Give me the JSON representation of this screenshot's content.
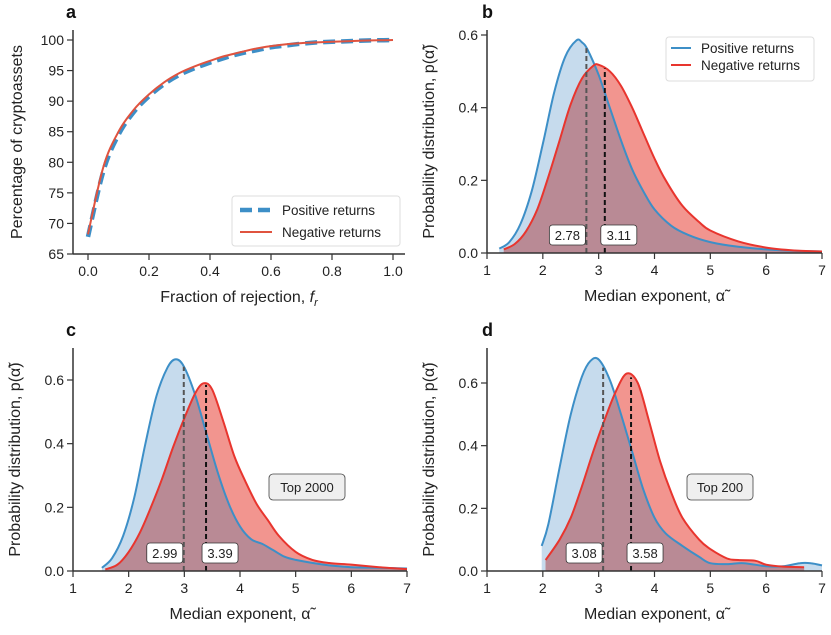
{
  "colors": {
    "positive": "#3d8fc7",
    "negative": "#e8352e",
    "positive_fill": "#a8c8e4",
    "negative_fill": "#ef7a73",
    "overlap_fill": "#b98a95",
    "median_pos": "#555555",
    "median_neg": "#111111"
  },
  "chart_data": [
    {
      "panel": "a",
      "type": "line",
      "xlabel": "Fraction of rejection, f_r",
      "xlabel_main": "Fraction of rejection, ",
      "xlabel_italic": "f",
      "xlabel_sub": "r",
      "ylabel": "Percentage of cryptoassets",
      "xlim": [
        0,
        1
      ],
      "ylim": [
        65,
        101.5
      ],
      "xticks": [
        "0.0",
        "0.2",
        "0.4",
        "0.6",
        "0.8",
        "1.0"
      ],
      "xtick_values": [
        0,
        0.2,
        0.4,
        0.6,
        0.8,
        1.0
      ],
      "yticks": [
        "65",
        "70",
        "75",
        "80",
        "85",
        "90",
        "95",
        "100"
      ],
      "ytick_values": [
        65,
        70,
        75,
        80,
        85,
        90,
        95,
        100
      ],
      "legend": {
        "placement": "lower-right",
        "entries": [
          "Positive returns",
          "Negative returns"
        ]
      },
      "series": [
        {
          "name": "Positive returns",
          "style": "dashed",
          "x": [
            0,
            0.05,
            0.1,
            0.15,
            0.2,
            0.25,
            0.3,
            0.35,
            0.4,
            0.45,
            0.5,
            0.55,
            0.6,
            0.65,
            0.7,
            0.75,
            0.8,
            0.85,
            0.9,
            0.95,
            1.0
          ],
          "y": [
            67.8,
            78.5,
            84.5,
            88.2,
            90.8,
            92.8,
            94.3,
            95.4,
            96.3,
            97.1,
            97.8,
            98.3,
            98.8,
            99.1,
            99.4,
            99.6,
            99.7,
            99.8,
            99.9,
            99.95,
            100
          ]
        },
        {
          "name": "Negative returns",
          "style": "solid",
          "x": [
            0,
            0.05,
            0.1,
            0.15,
            0.2,
            0.25,
            0.3,
            0.35,
            0.4,
            0.45,
            0.5,
            0.55,
            0.6,
            0.65,
            0.7,
            0.75,
            0.8,
            0.85,
            0.9,
            0.95,
            1.0
          ],
          "y": [
            68.2,
            79.2,
            85.0,
            88.6,
            91.1,
            93.1,
            94.6,
            95.7,
            96.6,
            97.4,
            98.0,
            98.6,
            99.0,
            99.3,
            99.5,
            99.6,
            99.7,
            99.8,
            99.9,
            99.95,
            100
          ]
        }
      ]
    },
    {
      "panel": "b",
      "type": "area",
      "xlabel": "Median exponent, α̃",
      "ylabel": "Probability distribution, p(α̃)",
      "xlim": [
        1,
        7
      ],
      "ylim": [
        0,
        0.62
      ],
      "xticks": [
        "1",
        "2",
        "3",
        "4",
        "5",
        "6",
        "7"
      ],
      "xtick_values": [
        1,
        2,
        3,
        4,
        5,
        6,
        7
      ],
      "yticks": [
        "0.0",
        "0.2",
        "0.4",
        "0.6"
      ],
      "ytick_values": [
        0,
        0.2,
        0.4,
        0.6
      ],
      "legend": {
        "placement": "top-right",
        "entries": [
          "Positive returns",
          "Negative returns"
        ]
      },
      "annotation": "",
      "medians": {
        "positive": 2.78,
        "negative": 3.11,
        "positive_label": "2.78",
        "negative_label": "3.11"
      },
      "series": [
        {
          "name": "Positive returns",
          "x": [
            1.22,
            1.4,
            1.6,
            1.8,
            2.0,
            2.2,
            2.4,
            2.6,
            2.7,
            2.8,
            3.0,
            3.2,
            3.4,
            3.6,
            3.8,
            4.0,
            4.3,
            4.6,
            5.0,
            5.5,
            6.0,
            6.5,
            7.0
          ],
          "y": [
            0.012,
            0.03,
            0.08,
            0.17,
            0.3,
            0.44,
            0.54,
            0.585,
            0.58,
            0.56,
            0.49,
            0.4,
            0.31,
            0.23,
            0.17,
            0.12,
            0.075,
            0.05,
            0.03,
            0.017,
            0.01,
            0.006,
            0.004
          ]
        },
        {
          "name": "Negative returns",
          "x": [
            1.3,
            1.5,
            1.7,
            1.9,
            2.1,
            2.3,
            2.5,
            2.7,
            2.9,
            3.0,
            3.2,
            3.4,
            3.6,
            3.8,
            4.0,
            4.2,
            4.5,
            4.8,
            5.0,
            5.5,
            6.0,
            6.5,
            7.0
          ],
          "y": [
            0.01,
            0.025,
            0.06,
            0.12,
            0.21,
            0.31,
            0.41,
            0.48,
            0.515,
            0.518,
            0.5,
            0.46,
            0.4,
            0.33,
            0.26,
            0.2,
            0.13,
            0.085,
            0.062,
            0.032,
            0.015,
            0.007,
            0.004
          ]
        }
      ]
    },
    {
      "panel": "c",
      "type": "area",
      "xlabel": "Median exponent, α̃",
      "ylabel": "Probability distribution, p(α̃)",
      "xlim": [
        1,
        7
      ],
      "ylim": [
        0,
        0.7
      ],
      "xticks": [
        "1",
        "2",
        "3",
        "4",
        "5",
        "6",
        "7"
      ],
      "xtick_values": [
        1,
        2,
        3,
        4,
        5,
        6,
        7
      ],
      "yticks": [
        "0.0",
        "0.2",
        "0.4",
        "0.6"
      ],
      "ytick_values": [
        0,
        0.2,
        0.4,
        0.6
      ],
      "annotation": "Top 2000",
      "medians": {
        "positive": 2.99,
        "negative": 3.39,
        "positive_label": "2.99",
        "negative_label": "3.39"
      },
      "series": [
        {
          "name": "Positive returns",
          "x": [
            1.52,
            1.7,
            1.9,
            2.1,
            2.3,
            2.5,
            2.7,
            2.85,
            3.0,
            3.2,
            3.4,
            3.6,
            3.8,
            4.0,
            4.2,
            4.4,
            4.6,
            4.8,
            5.0,
            5.5,
            6.0,
            6.5,
            7.0
          ],
          "y": [
            0.01,
            0.04,
            0.11,
            0.23,
            0.4,
            0.55,
            0.64,
            0.665,
            0.64,
            0.55,
            0.43,
            0.31,
            0.21,
            0.14,
            0.1,
            0.085,
            0.065,
            0.045,
            0.035,
            0.02,
            0.012,
            0.01,
            0.008
          ]
        },
        {
          "name": "Negative returns",
          "x": [
            1.58,
            1.8,
            2.0,
            2.2,
            2.4,
            2.6,
            2.8,
            3.0,
            3.2,
            3.35,
            3.5,
            3.7,
            3.9,
            4.1,
            4.3,
            4.5,
            4.7,
            5.0,
            5.3,
            5.6,
            6.0,
            6.5,
            7.0
          ],
          "y": [
            0.005,
            0.02,
            0.06,
            0.12,
            0.2,
            0.29,
            0.39,
            0.48,
            0.56,
            0.59,
            0.57,
            0.47,
            0.36,
            0.28,
            0.21,
            0.16,
            0.11,
            0.06,
            0.035,
            0.025,
            0.02,
            0.012,
            0.006
          ]
        }
      ]
    },
    {
      "panel": "d",
      "type": "area",
      "xlabel": "Median exponent, α̃",
      "ylabel": "Probability distribution, p(α̃)",
      "xlim": [
        1,
        7
      ],
      "ylim": [
        0,
        0.7
      ],
      "xticks": [
        "1",
        "2",
        "3",
        "4",
        "5",
        "6",
        "7"
      ],
      "xtick_values": [
        1,
        2,
        3,
        4,
        5,
        6,
        7
      ],
      "yticks": [
        "0.0",
        "0.2",
        "0.4",
        "0.6"
      ],
      "ytick_values": [
        0,
        0.2,
        0.4,
        0.6
      ],
      "annotation": "Top 200",
      "medians": {
        "positive": 3.08,
        "negative": 3.58,
        "positive_label": "3.08",
        "negative_label": "3.58"
      },
      "series": [
        {
          "name": "Positive returns",
          "x": [
            1.98,
            2.1,
            2.3,
            2.5,
            2.7,
            2.85,
            3.0,
            3.2,
            3.4,
            3.6,
            3.8,
            4.0,
            4.2,
            4.5,
            4.8,
            5.0,
            5.3,
            5.6,
            6.0,
            6.3,
            6.6,
            6.8,
            7.0
          ],
          "y": [
            0.08,
            0.15,
            0.33,
            0.5,
            0.62,
            0.67,
            0.675,
            0.61,
            0.5,
            0.38,
            0.26,
            0.17,
            0.12,
            0.08,
            0.045,
            0.025,
            0.022,
            0.025,
            0.015,
            0.015,
            0.025,
            0.025,
            0.018
          ]
        },
        {
          "name": "Negative returns",
          "x": [
            2.05,
            2.3,
            2.5,
            2.7,
            2.9,
            3.1,
            3.3,
            3.5,
            3.7,
            3.9,
            4.1,
            4.3,
            4.5,
            4.8,
            5.0,
            5.3,
            5.5,
            5.8,
            6.0,
            6.3,
            6.68
          ],
          "y": [
            0.035,
            0.1,
            0.17,
            0.27,
            0.38,
            0.48,
            0.57,
            0.63,
            0.6,
            0.48,
            0.35,
            0.25,
            0.17,
            0.1,
            0.07,
            0.04,
            0.035,
            0.033,
            0.02,
            0.014,
            0.012
          ]
        }
      ]
    }
  ]
}
